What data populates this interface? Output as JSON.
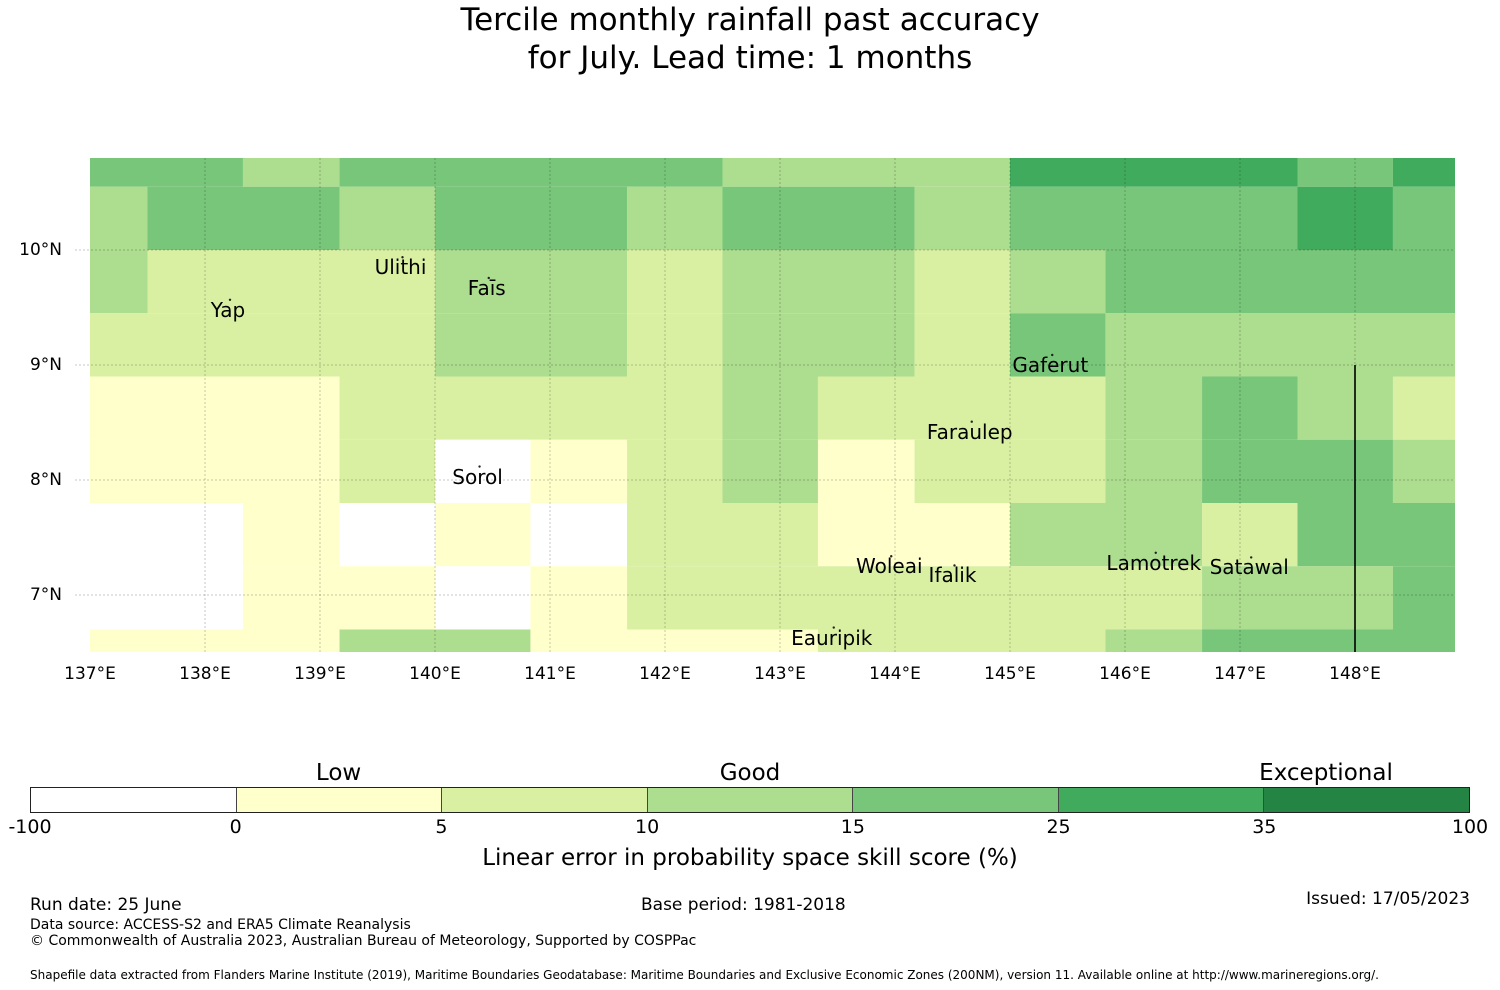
{
  "title": {
    "line1": "Tercile monthly rainfall past accuracy",
    "line2": "for July. Lead time: 1 months"
  },
  "map": {
    "lon_range": [
      137,
      149
    ],
    "lat_range": [
      6.5,
      10.8
    ],
    "lon_ticks": [
      "137°E",
      "138°E",
      "139°E",
      "140°E",
      "141°E",
      "142°E",
      "143°E",
      "144°E",
      "145°E",
      "146°E",
      "147°E",
      "148°E"
    ],
    "lat_ticks": [
      "10°N",
      "9°N",
      "8°N",
      "7°N"
    ],
    "grid_lon_values": [
      138,
      139,
      140,
      141,
      142,
      143,
      144,
      145,
      146,
      147,
      148
    ],
    "grid_lat_values": [
      10,
      9,
      8,
      7
    ],
    "boundary_line": {
      "lon": 148,
      "lat_from": 6.5,
      "lat_to": 9
    },
    "places": [
      {
        "name": "Ulithi",
        "lon": 139.7,
        "lat": 9.85
      },
      {
        "name": "Faīs",
        "lon": 140.45,
        "lat": 9.67
      },
      {
        "name": "Yap",
        "lon": 138.2,
        "lat": 9.48
      },
      {
        "name": "Gaferut",
        "lon": 145.35,
        "lat": 9.0
      },
      {
        "name": "Faraulep",
        "lon": 144.65,
        "lat": 8.42
      },
      {
        "name": "Sorol",
        "lon": 140.37,
        "lat": 8.03
      },
      {
        "name": "Woleai",
        "lon": 143.95,
        "lat": 7.25
      },
      {
        "name": "Ifalik",
        "lon": 144.5,
        "lat": 7.17
      },
      {
        "name": "Lamotrek",
        "lon": 146.25,
        "lat": 7.28
      },
      {
        "name": "Satawal",
        "lon": 147.08,
        "lat": 7.24
      },
      {
        "name": "Eauripik",
        "lon": 143.45,
        "lat": 6.63
      }
    ],
    "cells": [
      {
        "lon0": 137.0,
        "lon1": 138.33,
        "lat0": 10.55,
        "lat1": 10.8,
        "cls": 4
      },
      {
        "lon0": 138.33,
        "lon1": 139.17,
        "lat0": 10.55,
        "lat1": 10.8,
        "cls": 3
      },
      {
        "lon0": 139.17,
        "lon1": 142.5,
        "lat0": 10.55,
        "lat1": 10.8,
        "cls": 4
      },
      {
        "lon0": 142.5,
        "lon1": 145.0,
        "lat0": 10.55,
        "lat1": 10.8,
        "cls": 3
      },
      {
        "lon0": 145.0,
        "lon1": 147.5,
        "lat0": 10.55,
        "lat1": 10.8,
        "cls": 5
      },
      {
        "lon0": 147.5,
        "lon1": 148.33,
        "lat0": 10.55,
        "lat1": 10.8,
        "cls": 4
      },
      {
        "lon0": 148.33,
        "lon1": 149.0,
        "lat0": 10.55,
        "lat1": 10.8,
        "cls": 5
      },
      {
        "lon0": 137.0,
        "lon1": 137.5,
        "lat0": 10.0,
        "lat1": 10.55,
        "cls": 3
      },
      {
        "lon0": 137.5,
        "lon1": 139.17,
        "lat0": 10.0,
        "lat1": 10.55,
        "cls": 4
      },
      {
        "lon0": 139.17,
        "lon1": 140.0,
        "lat0": 10.0,
        "lat1": 10.55,
        "cls": 3
      },
      {
        "lon0": 140.0,
        "lon1": 141.67,
        "lat0": 10.0,
        "lat1": 10.55,
        "cls": 4
      },
      {
        "lon0": 141.67,
        "lon1": 142.5,
        "lat0": 10.0,
        "lat1": 10.55,
        "cls": 3
      },
      {
        "lon0": 142.5,
        "lon1": 144.17,
        "lat0": 10.0,
        "lat1": 10.55,
        "cls": 4
      },
      {
        "lon0": 144.17,
        "lon1": 145.0,
        "lat0": 10.0,
        "lat1": 10.55,
        "cls": 3
      },
      {
        "lon0": 145.0,
        "lon1": 147.5,
        "lat0": 10.0,
        "lat1": 10.55,
        "cls": 4
      },
      {
        "lon0": 147.5,
        "lon1": 148.33,
        "lat0": 10.0,
        "lat1": 10.55,
        "cls": 5
      },
      {
        "lon0": 148.33,
        "lon1": 149.0,
        "lat0": 10.0,
        "lat1": 10.55,
        "cls": 4
      },
      {
        "lon0": 137.0,
        "lon1": 137.5,
        "lat0": 9.45,
        "lat1": 10.0,
        "cls": 3
      },
      {
        "lon0": 137.5,
        "lon1": 140.0,
        "lat0": 9.45,
        "lat1": 10.0,
        "cls": 2
      },
      {
        "lon0": 140.0,
        "lon1": 141.67,
        "lat0": 9.45,
        "lat1": 10.0,
        "cls": 3
      },
      {
        "lon0": 141.67,
        "lon1": 142.5,
        "lat0": 9.45,
        "lat1": 10.0,
        "cls": 2
      },
      {
        "lon0": 142.5,
        "lon1": 144.17,
        "lat0": 9.45,
        "lat1": 10.0,
        "cls": 3
      },
      {
        "lon0": 144.17,
        "lon1": 145.0,
        "lat0": 9.45,
        "lat1": 10.0,
        "cls": 2
      },
      {
        "lon0": 145.0,
        "lon1": 145.83,
        "lat0": 9.45,
        "lat1": 10.0,
        "cls": 3
      },
      {
        "lon0": 145.83,
        "lon1": 149.0,
        "lat0": 9.45,
        "lat1": 10.0,
        "cls": 4
      },
      {
        "lon0": 137.0,
        "lon1": 140.0,
        "lat0": 8.9,
        "lat1": 9.45,
        "cls": 2
      },
      {
        "lon0": 140.0,
        "lon1": 141.67,
        "lat0": 8.9,
        "lat1": 9.45,
        "cls": 3
      },
      {
        "lon0": 141.67,
        "lon1": 142.5,
        "lat0": 8.9,
        "lat1": 9.45,
        "cls": 2
      },
      {
        "lon0": 142.5,
        "lon1": 144.17,
        "lat0": 8.9,
        "lat1": 9.45,
        "cls": 3
      },
      {
        "lon0": 144.17,
        "lon1": 145.0,
        "lat0": 8.9,
        "lat1": 9.45,
        "cls": 2
      },
      {
        "lon0": 145.0,
        "lon1": 145.83,
        "lat0": 8.9,
        "lat1": 9.45,
        "cls": 4
      },
      {
        "lon0": 145.83,
        "lon1": 149.0,
        "lat0": 8.9,
        "lat1": 9.45,
        "cls": 3
      },
      {
        "lon0": 137.0,
        "lon1": 139.17,
        "lat0": 8.35,
        "lat1": 8.9,
        "cls": 1
      },
      {
        "lon0": 139.17,
        "lon1": 142.5,
        "lat0": 8.35,
        "lat1": 8.9,
        "cls": 2
      },
      {
        "lon0": 142.5,
        "lon1": 143.33,
        "lat0": 8.35,
        "lat1": 8.9,
        "cls": 3
      },
      {
        "lon0": 143.33,
        "lon1": 145.83,
        "lat0": 8.35,
        "lat1": 8.9,
        "cls": 2
      },
      {
        "lon0": 145.83,
        "lon1": 146.67,
        "lat0": 8.35,
        "lat1": 8.9,
        "cls": 3
      },
      {
        "lon0": 146.67,
        "lon1": 147.5,
        "lat0": 8.35,
        "lat1": 8.9,
        "cls": 4
      },
      {
        "lon0": 147.5,
        "lon1": 148.33,
        "lat0": 8.35,
        "lat1": 8.9,
        "cls": 3
      },
      {
        "lon0": 148.33,
        "lon1": 149.0,
        "lat0": 8.35,
        "lat1": 8.9,
        "cls": 2
      },
      {
        "lon0": 137.0,
        "lon1": 139.17,
        "lat0": 7.8,
        "lat1": 8.35,
        "cls": 1
      },
      {
        "lon0": 139.17,
        "lon1": 140.0,
        "lat0": 7.8,
        "lat1": 8.35,
        "cls": 2
      },
      {
        "lon0": 140.0,
        "lon1": 140.83,
        "lat0": 7.8,
        "lat1": 8.35,
        "cls": 0
      },
      {
        "lon0": 140.83,
        "lon1": 141.67,
        "lat0": 7.8,
        "lat1": 8.35,
        "cls": 1
      },
      {
        "lon0": 141.67,
        "lon1": 142.5,
        "lat0": 7.8,
        "lat1": 8.35,
        "cls": 2
      },
      {
        "lon0": 142.5,
        "lon1": 143.33,
        "lat0": 7.8,
        "lat1": 8.35,
        "cls": 3
      },
      {
        "lon0": 143.33,
        "lon1": 144.17,
        "lat0": 7.8,
        "lat1": 8.35,
        "cls": 1
      },
      {
        "lon0": 144.17,
        "lon1": 145.83,
        "lat0": 7.8,
        "lat1": 8.35,
        "cls": 2
      },
      {
        "lon0": 145.83,
        "lon1": 146.67,
        "lat0": 7.8,
        "lat1": 8.35,
        "cls": 3
      },
      {
        "lon0": 146.67,
        "lon1": 148.33,
        "lat0": 7.8,
        "lat1": 8.35,
        "cls": 4
      },
      {
        "lon0": 148.33,
        "lon1": 149.0,
        "lat0": 7.8,
        "lat1": 8.35,
        "cls": 3
      },
      {
        "lon0": 137.0,
        "lon1": 138.33,
        "lat0": 7.25,
        "lat1": 7.8,
        "cls": 0
      },
      {
        "lon0": 138.33,
        "lon1": 139.17,
        "lat0": 7.25,
        "lat1": 7.8,
        "cls": 1
      },
      {
        "lon0": 139.17,
        "lon1": 140.0,
        "lat0": 7.25,
        "lat1": 7.8,
        "cls": 0
      },
      {
        "lon0": 140.0,
        "lon1": 140.83,
        "lat0": 7.25,
        "lat1": 7.8,
        "cls": 1
      },
      {
        "lon0": 140.83,
        "lon1": 141.67,
        "lat0": 7.25,
        "lat1": 7.8,
        "cls": 0
      },
      {
        "lon0": 141.67,
        "lon1": 143.33,
        "lat0": 7.25,
        "lat1": 7.8,
        "cls": 2
      },
      {
        "lon0": 143.33,
        "lon1": 145.0,
        "lat0": 7.25,
        "lat1": 7.8,
        "cls": 1
      },
      {
        "lon0": 145.0,
        "lon1": 146.67,
        "lat0": 7.25,
        "lat1": 7.8,
        "cls": 3
      },
      {
        "lon0": 146.67,
        "lon1": 147.5,
        "lat0": 7.25,
        "lat1": 7.8,
        "cls": 2
      },
      {
        "lon0": 147.5,
        "lon1": 149.0,
        "lat0": 7.25,
        "lat1": 7.8,
        "cls": 4
      },
      {
        "lon0": 137.0,
        "lon1": 138.33,
        "lat0": 6.7,
        "lat1": 7.25,
        "cls": 0
      },
      {
        "lon0": 138.33,
        "lon1": 140.0,
        "lat0": 6.7,
        "lat1": 7.25,
        "cls": 1
      },
      {
        "lon0": 140.0,
        "lon1": 140.83,
        "lat0": 6.7,
        "lat1": 7.25,
        "cls": 0
      },
      {
        "lon0": 140.83,
        "lon1": 141.67,
        "lat0": 6.7,
        "lat1": 7.25,
        "cls": 1
      },
      {
        "lon0": 141.67,
        "lon1": 146.67,
        "lat0": 6.7,
        "lat1": 7.25,
        "cls": 2
      },
      {
        "lon0": 146.67,
        "lon1": 148.33,
        "lat0": 6.7,
        "lat1": 7.25,
        "cls": 3
      },
      {
        "lon0": 148.33,
        "lon1": 149.0,
        "lat0": 6.7,
        "lat1": 7.25,
        "cls": 4
      },
      {
        "lon0": 137.0,
        "lon1": 139.17,
        "lat0": 6.5,
        "lat1": 6.7,
        "cls": 1
      },
      {
        "lon0": 139.17,
        "lon1": 140.83,
        "lat0": 6.5,
        "lat1": 6.7,
        "cls": 3
      },
      {
        "lon0": 140.83,
        "lon1": 143.33,
        "lat0": 6.5,
        "lat1": 6.7,
        "cls": 1
      },
      {
        "lon0": 143.33,
        "lon1": 145.83,
        "lat0": 6.5,
        "lat1": 6.7,
        "cls": 2
      },
      {
        "lon0": 145.83,
        "lon1": 146.67,
        "lat0": 6.5,
        "lat1": 6.7,
        "cls": 3
      },
      {
        "lon0": 146.67,
        "lon1": 149.0,
        "lat0": 6.5,
        "lat1": 6.7,
        "cls": 4
      }
    ]
  },
  "colors": [
    "#ffffff",
    "#ffffcc",
    "#d9f0a3",
    "#addd8e",
    "#78c679",
    "#41ab5d",
    "#238443"
  ],
  "colorbar": {
    "categories": [
      {
        "label": "Low",
        "position": 1.5
      },
      {
        "label": "Good",
        "position": 3.5
      },
      {
        "label": "Exceptional",
        "position": 6.3
      }
    ],
    "ticks": [
      "-100",
      "0",
      "5",
      "10",
      "15",
      "25",
      "35",
      "100"
    ],
    "label": "Linear error in probability space skill score (%)"
  },
  "footer": {
    "run_date": "Run date: 25 June",
    "base_period": "Base period: 1981-2018",
    "issued": "Issued: 17/05/2023",
    "data_source": "Data source: ACCESS-S2 and ERA5 Climate Reanalysis",
    "copyright": "© Commonwealth of Australia 2023, Australian Bureau of Meteorology, Supported by COSPPac",
    "shapefile": "Shapefile data extracted from Flanders Marine Institute (2019), Maritime Boundaries Geodatabase: Maritime Boundaries and Exclusive Economic Zones (200NM), version 11. Available online at http://www.marineregions.org/."
  }
}
